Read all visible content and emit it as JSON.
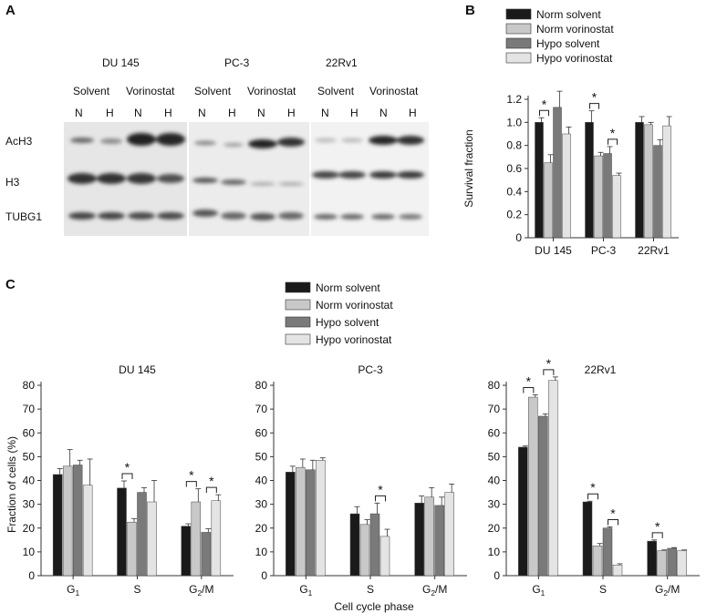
{
  "panels": {
    "a": "A",
    "b": "B",
    "c": "C"
  },
  "western_blot": {
    "cell_lines": [
      "DU 145",
      "PC-3",
      "22Rv1"
    ],
    "treatments": [
      "Solvent",
      "Vorinostat"
    ],
    "conditions": [
      "N",
      "H"
    ],
    "proteins": [
      "AcH3",
      "H3",
      "TUBG1"
    ]
  },
  "colors": {
    "norm_solvent": "#1a1a1a",
    "norm_vorinostat": "#c8c8c8",
    "hypo_solvent": "#7a7a7a",
    "hypo_vorinostat": "#e4e4e4"
  },
  "legend": [
    "Norm solvent",
    "Norm vorinostat",
    "Hypo solvent",
    "Hypo vorinostat"
  ],
  "chart_data": [
    {
      "type": "bar",
      "panel": "B",
      "categories": [
        "DU 145",
        "PC-3",
        "22Rv1"
      ],
      "ylabel": "Survival fraction",
      "ylim": [
        0,
        1.2
      ],
      "yticks": [
        "0",
        "0.2",
        "0.4",
        "0.6",
        "0.8",
        "1.0",
        "1.2"
      ],
      "significance_mark": "*",
      "legend_position": "top",
      "series": [
        {
          "name": "Norm solvent",
          "values": [
            1.0,
            1.0,
            1.0
          ],
          "errors": [
            0.04,
            0.1,
            0.05
          ]
        },
        {
          "name": "Norm vorinostat",
          "values": [
            0.65,
            0.71,
            0.98
          ],
          "errors": [
            0.07,
            0.03,
            0.02
          ]
        },
        {
          "name": "Hypo solvent",
          "values": [
            1.13,
            0.73,
            0.8
          ],
          "errors": [
            0.14,
            0.06,
            0.05
          ]
        },
        {
          "name": "Hypo vorinostat",
          "values": [
            0.9,
            0.54,
            0.97
          ],
          "errors": [
            0.06,
            0.02,
            0.08
          ]
        }
      ],
      "significance": [
        {
          "cat": 0,
          "from": 0,
          "to": 1
        },
        {
          "cat": 1,
          "from": 0,
          "to": 1
        },
        {
          "cat": 1,
          "from": 2,
          "to": 3
        }
      ]
    },
    {
      "type": "bar",
      "panel": "C",
      "title": "DU 145",
      "ylabel": "Fraction of cells (%)",
      "ylim": [
        0,
        80
      ],
      "yticks": [
        "0",
        "10",
        "20",
        "30",
        "40",
        "50",
        "60",
        "70",
        "80"
      ],
      "categories": [
        "G1",
        "S",
        "G2/M"
      ],
      "series": [
        {
          "name": "Norm solvent",
          "values": [
            42.5,
            36.8,
            20.8
          ],
          "errors": [
            2.5,
            3.0,
            1.0
          ]
        },
        {
          "name": "Norm vorinostat",
          "values": [
            46.0,
            22.5,
            31.0
          ],
          "errors": [
            7.0,
            1.5,
            5.5
          ]
        },
        {
          "name": "Hypo solvent",
          "values": [
            46.5,
            35.0,
            18.2
          ],
          "errors": [
            2.0,
            2.0,
            1.5
          ]
        },
        {
          "name": "Hypo vorinostat",
          "values": [
            38.0,
            31.0,
            31.5
          ],
          "errors": [
            11.0,
            9.0,
            2.5
          ]
        }
      ],
      "significance": [
        {
          "cat": 1,
          "from": 0,
          "to": 1
        },
        {
          "cat": 2,
          "from": 0,
          "to": 1
        },
        {
          "cat": 2,
          "from": 2,
          "to": 3
        }
      ]
    },
    {
      "type": "bar",
      "panel": "C",
      "title": "PC-3",
      "ylim": [
        0,
        80
      ],
      "yticks": [
        "0",
        "10",
        "20",
        "30",
        "40",
        "50",
        "60",
        "70",
        "80"
      ],
      "categories": [
        "G1",
        "S",
        "G2/M"
      ],
      "xlabel": "Cell cycle phase",
      "series": [
        {
          "name": "Norm solvent",
          "values": [
            43.5,
            26.0,
            30.5
          ],
          "errors": [
            2.5,
            3.0,
            3.0
          ]
        },
        {
          "name": "Norm vorinostat",
          "values": [
            45.5,
            21.5,
            33.0
          ],
          "errors": [
            3.5,
            2.0,
            4.0
          ]
        },
        {
          "name": "Hypo solvent",
          "values": [
            44.5,
            26.0,
            29.5
          ],
          "errors": [
            4.0,
            4.5,
            3.5
          ]
        },
        {
          "name": "Hypo vorinostat",
          "values": [
            48.5,
            16.5,
            35.0
          ],
          "errors": [
            1.0,
            3.0,
            3.5
          ]
        }
      ],
      "significance": [
        {
          "cat": 1,
          "from": 2,
          "to": 3
        }
      ]
    },
    {
      "type": "bar",
      "panel": "C",
      "title": "22Rv1",
      "ylim": [
        0,
        80
      ],
      "yticks": [
        "0",
        "10",
        "20",
        "30",
        "40",
        "50",
        "60",
        "70",
        "80"
      ],
      "categories": [
        "G1",
        "S",
        "G2/M"
      ],
      "series": [
        {
          "name": "Norm solvent",
          "values": [
            54.0,
            31.0,
            14.5
          ],
          "errors": [
            0.5,
            0.3,
            0.5
          ]
        },
        {
          "name": "Norm vorinostat",
          "values": [
            75.0,
            12.5,
            10.5
          ],
          "errors": [
            1.0,
            1.0,
            0.3
          ]
        },
        {
          "name": "Hypo solvent",
          "values": [
            67.0,
            20.0,
            11.5
          ],
          "errors": [
            1.0,
            0.5,
            0.3
          ]
        },
        {
          "name": "Hypo vorinostat",
          "values": [
            82.0,
            4.5,
            10.5
          ],
          "errors": [
            1.5,
            0.5,
            0.3
          ]
        }
      ],
      "significance": [
        {
          "cat": 0,
          "from": 0,
          "to": 1
        },
        {
          "cat": 0,
          "from": 2,
          "to": 3
        },
        {
          "cat": 1,
          "from": 0,
          "to": 1
        },
        {
          "cat": 1,
          "from": 2,
          "to": 3
        },
        {
          "cat": 2,
          "from": 0,
          "to": 1
        }
      ]
    }
  ]
}
